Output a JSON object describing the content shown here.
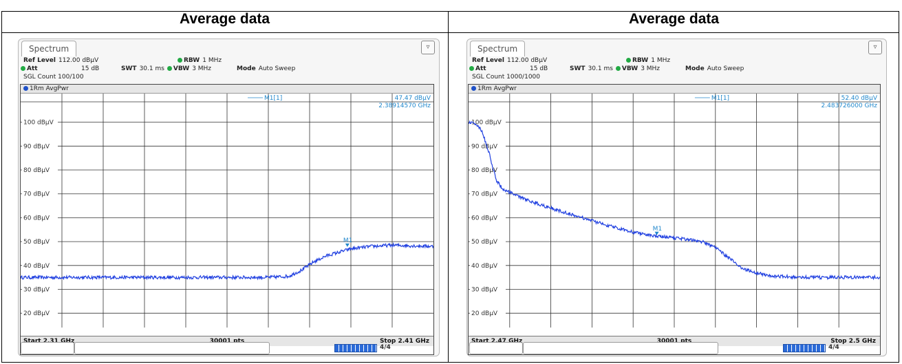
{
  "panels": [
    {
      "heading": "Average data",
      "tab": "Spectrum",
      "ref_level_label": "Ref Level",
      "ref_level_value": "112.00 dBµV",
      "att_label": "Att",
      "att_value": "15 dB",
      "swt_label": "SWT",
      "swt_value": "30.1 ms",
      "rbw_label": "RBW",
      "rbw_value": "1 MHz",
      "vbw_label": "VBW",
      "vbw_value": "3 MHz",
      "mode_label": "Mode",
      "mode_value": "Auto Sweep",
      "sgl_count": "SGL Count 100/100",
      "trace_label": "1Rm AvgPwr",
      "marker_name": "M1[1]",
      "marker_level": "47.47 dBµV",
      "marker_freq": "2.38914570 GHz",
      "start_label": "Start 2.31 GHz",
      "points_label": "30001 pts",
      "stop_label": "Stop 2.41 GHz",
      "status_tail": "4/4"
    },
    {
      "heading": "Average data",
      "tab": "Spectrum",
      "ref_level_label": "Ref Level",
      "ref_level_value": "112.00 dBµV",
      "att_label": "Att",
      "att_value": "15 dB",
      "swt_label": "SWT",
      "swt_value": "30.1 ms",
      "rbw_label": "RBW",
      "rbw_value": "1 MHz",
      "vbw_label": "VBW",
      "vbw_value": "3 MHz",
      "mode_label": "Mode",
      "mode_value": "Auto Sweep",
      "sgl_count": "SGL Count 1000/1000",
      "trace_label": "1Rm AvgPwr",
      "marker_name": "M1[1]",
      "marker_level": "52.40 dBµV",
      "marker_freq": "2.483726000 GHz",
      "start_label": "Start 2.47 GHz",
      "points_label": "30001 pts",
      "stop_label": "Stop 2.5 GHz",
      "status_tail": "4/4"
    }
  ],
  "colors": {
    "trace": "#1f3fe0",
    "marker": "#2288cc",
    "grid": "#333333"
  },
  "chart_data": [
    {
      "type": "line",
      "title": "",
      "xlabel": "",
      "ylabel": "",
      "x_unit": "GHz",
      "y_unit": "dBµV",
      "xlim": [
        2.31,
        2.41
      ],
      "ylim": [
        14,
        112
      ],
      "grid": true,
      "y_ticks": [
        20,
        30,
        40,
        50,
        60,
        70,
        80,
        90,
        100
      ],
      "y_tick_labels": [
        "20 dBµV",
        "30 dBµV",
        "40 dBµV",
        "50 dBµV",
        "60 dBµV",
        "70 dBµV",
        "80 dBµV",
        "90 dBµV",
        "100 dBµV"
      ],
      "series": [
        {
          "x": [
            2.31,
            2.32,
            2.33,
            2.34,
            2.35,
            2.36,
            2.37,
            2.375,
            2.378,
            2.381,
            2.384,
            2.387,
            2.39,
            2.395,
            2.4,
            2.41
          ],
          "y": [
            35,
            35,
            35,
            35,
            35,
            35,
            35,
            35.5,
            38,
            41.5,
            44,
            45.5,
            47,
            48,
            48.5,
            48
          ]
        }
      ],
      "marker": {
        "x": 2.3891457,
        "y": 47.47
      }
    },
    {
      "type": "line",
      "title": "",
      "xlabel": "",
      "ylabel": "",
      "x_unit": "GHz",
      "y_unit": "dBµV",
      "xlim": [
        2.47,
        2.5
      ],
      "ylim": [
        14,
        112
      ],
      "grid": true,
      "y_ticks": [
        20,
        30,
        40,
        50,
        60,
        70,
        80,
        90,
        100
      ],
      "y_tick_labels": [
        "20 dBµV",
        "30 dBµV",
        "40 dBµV",
        "50 dBµV",
        "60 dBµV",
        "70 dBµV",
        "80 dBµV",
        "90 dBµV",
        "100 dBµV"
      ],
      "series": [
        {
          "x": [
            2.47,
            2.4705,
            2.471,
            2.4715,
            2.472,
            2.4725,
            2.473,
            2.474,
            2.476,
            2.478,
            2.48,
            2.482,
            2.484,
            2.486,
            2.487,
            2.488,
            2.489,
            2.49,
            2.492,
            2.495,
            2.5
          ],
          "y": [
            100,
            99.5,
            96,
            87,
            76,
            72,
            70.5,
            68,
            64,
            60.5,
            57,
            54,
            52,
            51,
            50,
            47.5,
            43,
            38.5,
            35.5,
            35,
            35
          ]
        }
      ],
      "marker": {
        "x": 2.483726,
        "y": 52.4
      }
    }
  ]
}
